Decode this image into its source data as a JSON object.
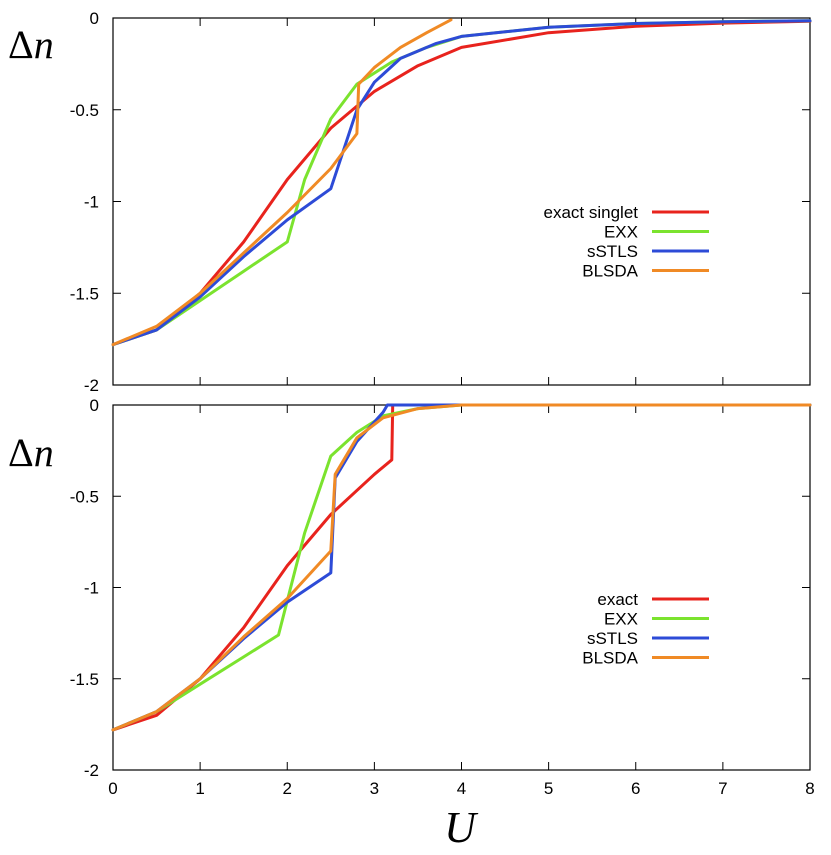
{
  "chart_data": [
    {
      "type": "line",
      "panel": "top",
      "ylabel_symbol": "Δ",
      "ylabel_var": "n",
      "xlabel": "",
      "xlim": [
        0,
        8
      ],
      "ylim": [
        -2,
        0
      ],
      "xticks": [],
      "yticks": [
        "0",
        "-0.5",
        "-1",
        "-1.5",
        "-2"
      ],
      "ytick_values": [
        0,
        -0.5,
        -1,
        -1.5,
        -2
      ],
      "grid": false,
      "legend_position": "right",
      "series": [
        {
          "name": "exact singlet",
          "color": "#e8231d",
          "x": [
            0,
            0.5,
            1,
            1.5,
            2,
            2.5,
            3,
            3.5,
            4,
            5,
            6,
            7,
            8
          ],
          "y": [
            -1.78,
            -1.7,
            -1.5,
            -1.22,
            -0.88,
            -0.6,
            -0.4,
            -0.26,
            -0.16,
            -0.08,
            -0.045,
            -0.028,
            -0.018
          ]
        },
        {
          "name": "EXX",
          "color": "#7be32e",
          "x": [
            0,
            0.5,
            1,
            1.5,
            2,
            2.2,
            2.5,
            2.8,
            3.2,
            3.6,
            4,
            5,
            6,
            7,
            8
          ],
          "y": [
            -1.78,
            -1.7,
            -1.54,
            -1.38,
            -1.22,
            -0.88,
            -0.55,
            -0.36,
            -0.24,
            -0.16,
            -0.1,
            -0.05,
            -0.03,
            -0.02,
            -0.015
          ]
        },
        {
          "name": "sSTLS",
          "color": "#2d4bd7",
          "x": [
            0,
            0.5,
            1,
            1.5,
            2,
            2.5,
            2.8,
            3,
            3.3,
            3.7,
            4,
            5,
            6,
            7,
            8
          ],
          "y": [
            -1.78,
            -1.7,
            -1.52,
            -1.3,
            -1.1,
            -0.93,
            -0.5,
            -0.35,
            -0.22,
            -0.14,
            -0.1,
            -0.05,
            -0.03,
            -0.02,
            -0.015
          ]
        },
        {
          "name": "BLSDA",
          "color": "#f08a25",
          "x": [
            0,
            0.5,
            1,
            1.5,
            2,
            2.5,
            2.8,
            2.82,
            3,
            3.3,
            3.6,
            3.88
          ],
          "y": [
            -1.78,
            -1.68,
            -1.5,
            -1.28,
            -1.06,
            -0.82,
            -0.63,
            -0.36,
            -0.27,
            -0.16,
            -0.08,
            -0.01
          ]
        }
      ]
    },
    {
      "type": "line",
      "panel": "bottom",
      "ylabel_symbol": "Δ",
      "ylabel_var": "n",
      "xlabel": "U",
      "xlim": [
        0,
        8
      ],
      "ylim": [
        -2,
        0
      ],
      "xticks": [
        "0",
        "1",
        "2",
        "3",
        "4",
        "5",
        "6",
        "7",
        "8"
      ],
      "xtick_values": [
        0,
        1,
        2,
        3,
        4,
        5,
        6,
        7,
        8
      ],
      "yticks": [
        "0",
        "-0.5",
        "-1",
        "-1.5",
        "-2"
      ],
      "ytick_values": [
        0,
        -0.5,
        -1,
        -1.5,
        -2
      ],
      "grid": false,
      "legend_position": "right",
      "series": [
        {
          "name": "exact",
          "color": "#e8231d",
          "x": [
            0,
            0.5,
            1,
            1.5,
            2,
            2.5,
            3,
            3.2,
            3.21,
            4,
            5,
            6,
            7,
            8
          ],
          "y": [
            -1.78,
            -1.7,
            -1.5,
            -1.22,
            -0.88,
            -0.6,
            -0.38,
            -0.3,
            0,
            0,
            0,
            0,
            0,
            0
          ]
        },
        {
          "name": "EXX",
          "color": "#7be32e",
          "x": [
            0,
            0.5,
            1,
            1.5,
            1.9,
            2.2,
            2.5,
            2.8,
            3.1,
            3.5,
            4,
            5,
            6,
            7,
            8
          ],
          "y": [
            -1.78,
            -1.68,
            -1.53,
            -1.38,
            -1.26,
            -0.7,
            -0.28,
            -0.15,
            -0.06,
            -0.02,
            0,
            0,
            0,
            0,
            0
          ]
        },
        {
          "name": "sSTLS",
          "color": "#2d4bd7",
          "x": [
            0,
            0.5,
            1,
            1.5,
            2,
            2.5,
            2.55,
            2.8,
            3.1,
            3.15,
            4,
            5,
            6,
            7,
            8
          ],
          "y": [
            -1.78,
            -1.68,
            -1.5,
            -1.28,
            -1.08,
            -0.92,
            -0.4,
            -0.2,
            -0.04,
            0,
            0,
            0,
            0,
            0,
            0
          ]
        },
        {
          "name": "BLSDA",
          "color": "#f08a25",
          "x": [
            0,
            0.5,
            1,
            1.5,
            2,
            2.5,
            2.55,
            2.8,
            3.1,
            3.5,
            4,
            5,
            6,
            7,
            8
          ],
          "y": [
            -1.78,
            -1.68,
            -1.5,
            -1.27,
            -1.06,
            -0.8,
            -0.38,
            -0.18,
            -0.07,
            -0.02,
            0,
            0,
            0,
            0,
            0
          ]
        }
      ]
    }
  ]
}
